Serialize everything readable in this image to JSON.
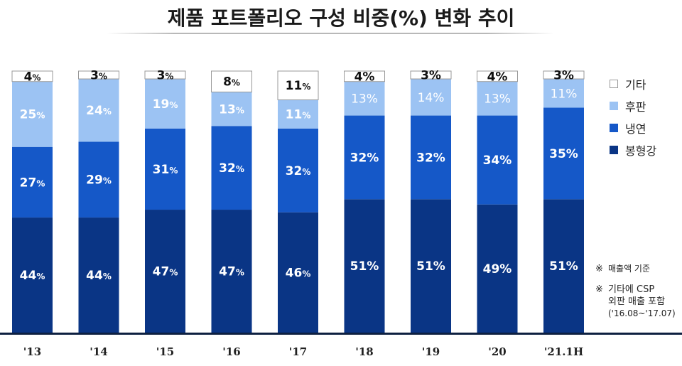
{
  "title": "제품 포트폴리오 구성 비중(%) 변화 추이",
  "legend": [
    {
      "label": "기타",
      "color": "#ffffff"
    },
    {
      "label": "후판",
      "color": "#9cc3f3"
    },
    {
      "label": "냉연",
      "color": "#1558c8"
    },
    {
      "label": "봉형강",
      "color": "#0a3585"
    }
  ],
  "notes": [
    {
      "mark": "※",
      "lines": [
        "매출액 기준"
      ]
    },
    {
      "mark": "※",
      "lines": [
        "기타에 CSP",
        "외판 매출 포함",
        "('16.08~'17.07)"
      ]
    }
  ],
  "chart_data": {
    "type": "bar",
    "stacked": true,
    "categories": [
      "'13",
      "'14",
      "'15",
      "'16",
      "'17",
      "'18",
      "'19",
      "'20",
      "'21.1H"
    ],
    "series": [
      {
        "name": "봉형강",
        "color": "#0a3585",
        "values": [
          44,
          44,
          47,
          47,
          46,
          51,
          51,
          49,
          51
        ]
      },
      {
        "name": "냉연",
        "color": "#1558c8",
        "values": [
          27,
          29,
          31,
          32,
          32,
          32,
          32,
          34,
          35
        ]
      },
      {
        "name": "후판",
        "color": "#9cc3f3",
        "values": [
          25,
          24,
          19,
          13,
          11,
          13,
          14,
          13,
          11
        ]
      },
      {
        "name": "기타",
        "color": "#ffffff",
        "values": [
          4,
          3,
          3,
          8,
          11,
          4,
          3,
          4,
          3
        ]
      }
    ],
    "unit": "%",
    "ylim": [
      0,
      100
    ],
    "grid": false,
    "legend_position": "right"
  }
}
